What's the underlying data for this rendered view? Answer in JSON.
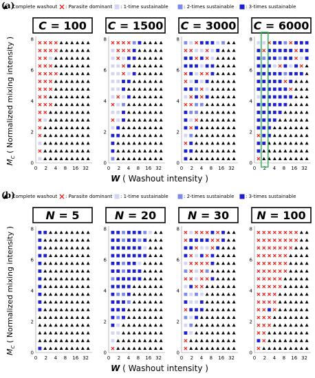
{
  "figure": {
    "panel_labels": [
      "(a)",
      "(b)"
    ],
    "legend": [
      {
        "marker": "▲",
        "color": "#000000",
        "label": ": Complete washout"
      },
      {
        "marker": "×",
        "color": "#e8231e",
        "label": ": Parasite dominant"
      },
      {
        "marker": "■",
        "color": "#d2d4f5",
        "label": ": 1-time sustainable"
      },
      {
        "marker": "■",
        "color": "#7b8ce8",
        "label": ": 2-times sustainable"
      },
      {
        "marker": "■",
        "color": "#1c1fcc",
        "label": ": 3-times sustainable"
      }
    ],
    "ylabel_parts": [
      "M",
      "C",
      " ( Normalized mixing intensity )"
    ],
    "xlabel_parts": [
      "W",
      " ( Washout intensity )"
    ],
    "highlight_note": "green box marks the W = 2 column in the C = 6000 panel"
  },
  "chart_data": [
    {
      "type": "heatmap",
      "title_var": "C",
      "title_value": "100",
      "x_ticks": [
        "0",
        "2",
        "4",
        "8",
        "16",
        "32"
      ],
      "y_ticks": [
        "0",
        "2",
        "4",
        "6",
        "8"
      ],
      "xlim": [
        0,
        8.8
      ],
      "ylim": [
        0,
        8
      ],
      "pattern": {
        "washout_boundary_W_at_Mc0": 0.4,
        "washout_slope": 2.6,
        "dominant_state": "parasite dominant"
      }
    },
    {
      "type": "heatmap",
      "title_var": "C",
      "title_value": "1500",
      "x_ticks": [
        "0",
        "2",
        "4",
        "8",
        "16",
        "32"
      ],
      "y_ticks": [
        "0",
        "2",
        "4",
        "6",
        "8"
      ],
      "xlim": [
        0,
        8.8
      ],
      "ylim": [
        0,
        8
      ],
      "pattern": {
        "washout_boundary_W_at_Mc0": 0.4,
        "washout_slope": 1.9,
        "dominant_state": "parasite dominant, sustainable near washout boundary"
      }
    },
    {
      "type": "heatmap",
      "title_var": "C",
      "title_value": "3000",
      "x_ticks": [
        "0",
        "2",
        "4",
        "8",
        "16",
        "32"
      ],
      "y_ticks": [
        "0",
        "2",
        "4",
        "6",
        "8"
      ],
      "xlim": [
        0,
        8.8
      ],
      "ylim": [
        0,
        8
      ],
      "pattern": {
        "washout_boundary_W_at_Mc0": 0.4,
        "washout_slope": 1.3,
        "dominant_state": "mixed sustainable / parasite"
      }
    },
    {
      "type": "heatmap",
      "title_var": "C",
      "title_value": "6000",
      "x_ticks": [
        "0",
        "2",
        "4",
        "8",
        "16",
        "32"
      ],
      "y_ticks": [
        "0",
        "2",
        "4",
        "6",
        "8"
      ],
      "xlim": [
        0,
        8.8
      ],
      "ylim": [
        0,
        8
      ],
      "pattern": {
        "washout_boundary_W_at_Mc0": 0.4,
        "washout_slope": 0.85,
        "dominant_state": "3-times sustainable"
      },
      "highlight_column_W": 2
    },
    {
      "type": "heatmap",
      "title_var": "N",
      "title_value": "5",
      "x_ticks": [
        "0",
        "2",
        "4",
        "8",
        "16",
        "32"
      ],
      "y_ticks": [
        "0",
        "2",
        "4",
        "6",
        "8"
      ],
      "xlim": [
        0,
        8.8
      ],
      "ylim": [
        0,
        8
      ],
      "pattern": {
        "washout_boundary_W_at_Mc0": 0.2,
        "washout_slope": 10.0,
        "dominant_state": "3-times sustainable"
      }
    },
    {
      "type": "heatmap",
      "title_var": "N",
      "title_value": "20",
      "x_ticks": [
        "0",
        "2",
        "4",
        "8",
        "16",
        "32"
      ],
      "y_ticks": [
        "0",
        "2",
        "4",
        "6",
        "8"
      ],
      "xlim": [
        0,
        8.8
      ],
      "ylim": [
        0,
        8
      ],
      "pattern": {
        "washout_boundary_W_at_Mc0": 0.4,
        "washout_slope": 1.2,
        "dominant_state": "3-times sustainable"
      }
    },
    {
      "type": "heatmap",
      "title_var": "N",
      "title_value": "30",
      "x_ticks": [
        "0",
        "2",
        "4",
        "8",
        "16",
        "32"
      ],
      "y_ticks": [
        "0",
        "2",
        "4",
        "6",
        "8"
      ],
      "xlim": [
        0,
        8.8
      ],
      "ylim": [
        0,
        8
      ],
      "pattern": {
        "washout_boundary_W_at_Mc0": 0.4,
        "washout_slope": 1.2,
        "dominant_state": "mixed sustainable / parasite"
      }
    },
    {
      "type": "heatmap",
      "title_var": "N",
      "title_value": "100",
      "x_ticks": [
        "0",
        "2",
        "4",
        "8",
        "16",
        "32"
      ],
      "y_ticks": [
        "0",
        "2",
        "4",
        "6",
        "8"
      ],
      "xlim": [
        0,
        8.8
      ],
      "ylim": [
        0,
        8
      ],
      "pattern": {
        "washout_boundary_W_at_Mc0": 0.4,
        "washout_slope": 1.2,
        "dominant_state": "parasite dominant"
      }
    }
  ]
}
